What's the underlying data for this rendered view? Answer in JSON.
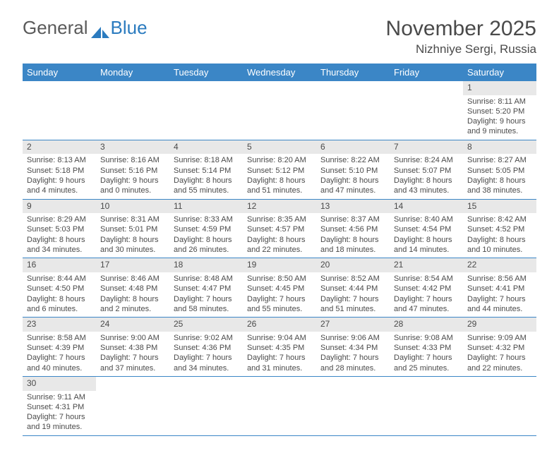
{
  "logo": {
    "text1": "General",
    "text2": "Blue"
  },
  "title": "November 2025",
  "location": "Nizhniye Sergi, Russia",
  "colors": {
    "header_bg": "#3b86c6",
    "header_text": "#ffffff",
    "daynum_bg": "#e8e8e8",
    "text": "#4a4a4a",
    "row_border": "#3b86c6"
  },
  "weekdays": [
    "Sunday",
    "Monday",
    "Tuesday",
    "Wednesday",
    "Thursday",
    "Friday",
    "Saturday"
  ],
  "first_weekday": 6,
  "days": [
    {
      "n": 1,
      "sunrise": "8:11 AM",
      "sunset": "5:20 PM",
      "daylight": "9 hours and 9 minutes."
    },
    {
      "n": 2,
      "sunrise": "8:13 AM",
      "sunset": "5:18 PM",
      "daylight": "9 hours and 4 minutes."
    },
    {
      "n": 3,
      "sunrise": "8:16 AM",
      "sunset": "5:16 PM",
      "daylight": "9 hours and 0 minutes."
    },
    {
      "n": 4,
      "sunrise": "8:18 AM",
      "sunset": "5:14 PM",
      "daylight": "8 hours and 55 minutes."
    },
    {
      "n": 5,
      "sunrise": "8:20 AM",
      "sunset": "5:12 PM",
      "daylight": "8 hours and 51 minutes."
    },
    {
      "n": 6,
      "sunrise": "8:22 AM",
      "sunset": "5:10 PM",
      "daylight": "8 hours and 47 minutes."
    },
    {
      "n": 7,
      "sunrise": "8:24 AM",
      "sunset": "5:07 PM",
      "daylight": "8 hours and 43 minutes."
    },
    {
      "n": 8,
      "sunrise": "8:27 AM",
      "sunset": "5:05 PM",
      "daylight": "8 hours and 38 minutes."
    },
    {
      "n": 9,
      "sunrise": "8:29 AM",
      "sunset": "5:03 PM",
      "daylight": "8 hours and 34 minutes."
    },
    {
      "n": 10,
      "sunrise": "8:31 AM",
      "sunset": "5:01 PM",
      "daylight": "8 hours and 30 minutes."
    },
    {
      "n": 11,
      "sunrise": "8:33 AM",
      "sunset": "4:59 PM",
      "daylight": "8 hours and 26 minutes."
    },
    {
      "n": 12,
      "sunrise": "8:35 AM",
      "sunset": "4:57 PM",
      "daylight": "8 hours and 22 minutes."
    },
    {
      "n": 13,
      "sunrise": "8:37 AM",
      "sunset": "4:56 PM",
      "daylight": "8 hours and 18 minutes."
    },
    {
      "n": 14,
      "sunrise": "8:40 AM",
      "sunset": "4:54 PM",
      "daylight": "8 hours and 14 minutes."
    },
    {
      "n": 15,
      "sunrise": "8:42 AM",
      "sunset": "4:52 PM",
      "daylight": "8 hours and 10 minutes."
    },
    {
      "n": 16,
      "sunrise": "8:44 AM",
      "sunset": "4:50 PM",
      "daylight": "8 hours and 6 minutes."
    },
    {
      "n": 17,
      "sunrise": "8:46 AM",
      "sunset": "4:48 PM",
      "daylight": "8 hours and 2 minutes."
    },
    {
      "n": 18,
      "sunrise": "8:48 AM",
      "sunset": "4:47 PM",
      "daylight": "7 hours and 58 minutes."
    },
    {
      "n": 19,
      "sunrise": "8:50 AM",
      "sunset": "4:45 PM",
      "daylight": "7 hours and 55 minutes."
    },
    {
      "n": 20,
      "sunrise": "8:52 AM",
      "sunset": "4:44 PM",
      "daylight": "7 hours and 51 minutes."
    },
    {
      "n": 21,
      "sunrise": "8:54 AM",
      "sunset": "4:42 PM",
      "daylight": "7 hours and 47 minutes."
    },
    {
      "n": 22,
      "sunrise": "8:56 AM",
      "sunset": "4:41 PM",
      "daylight": "7 hours and 44 minutes."
    },
    {
      "n": 23,
      "sunrise": "8:58 AM",
      "sunset": "4:39 PM",
      "daylight": "7 hours and 40 minutes."
    },
    {
      "n": 24,
      "sunrise": "9:00 AM",
      "sunset": "4:38 PM",
      "daylight": "7 hours and 37 minutes."
    },
    {
      "n": 25,
      "sunrise": "9:02 AM",
      "sunset": "4:36 PM",
      "daylight": "7 hours and 34 minutes."
    },
    {
      "n": 26,
      "sunrise": "9:04 AM",
      "sunset": "4:35 PM",
      "daylight": "7 hours and 31 minutes."
    },
    {
      "n": 27,
      "sunrise": "9:06 AM",
      "sunset": "4:34 PM",
      "daylight": "7 hours and 28 minutes."
    },
    {
      "n": 28,
      "sunrise": "9:08 AM",
      "sunset": "4:33 PM",
      "daylight": "7 hours and 25 minutes."
    },
    {
      "n": 29,
      "sunrise": "9:09 AM",
      "sunset": "4:32 PM",
      "daylight": "7 hours and 22 minutes."
    },
    {
      "n": 30,
      "sunrise": "9:11 AM",
      "sunset": "4:31 PM",
      "daylight": "7 hours and 19 minutes."
    }
  ],
  "labels": {
    "sunrise": "Sunrise: ",
    "sunset": "Sunset: ",
    "daylight": "Daylight: "
  }
}
